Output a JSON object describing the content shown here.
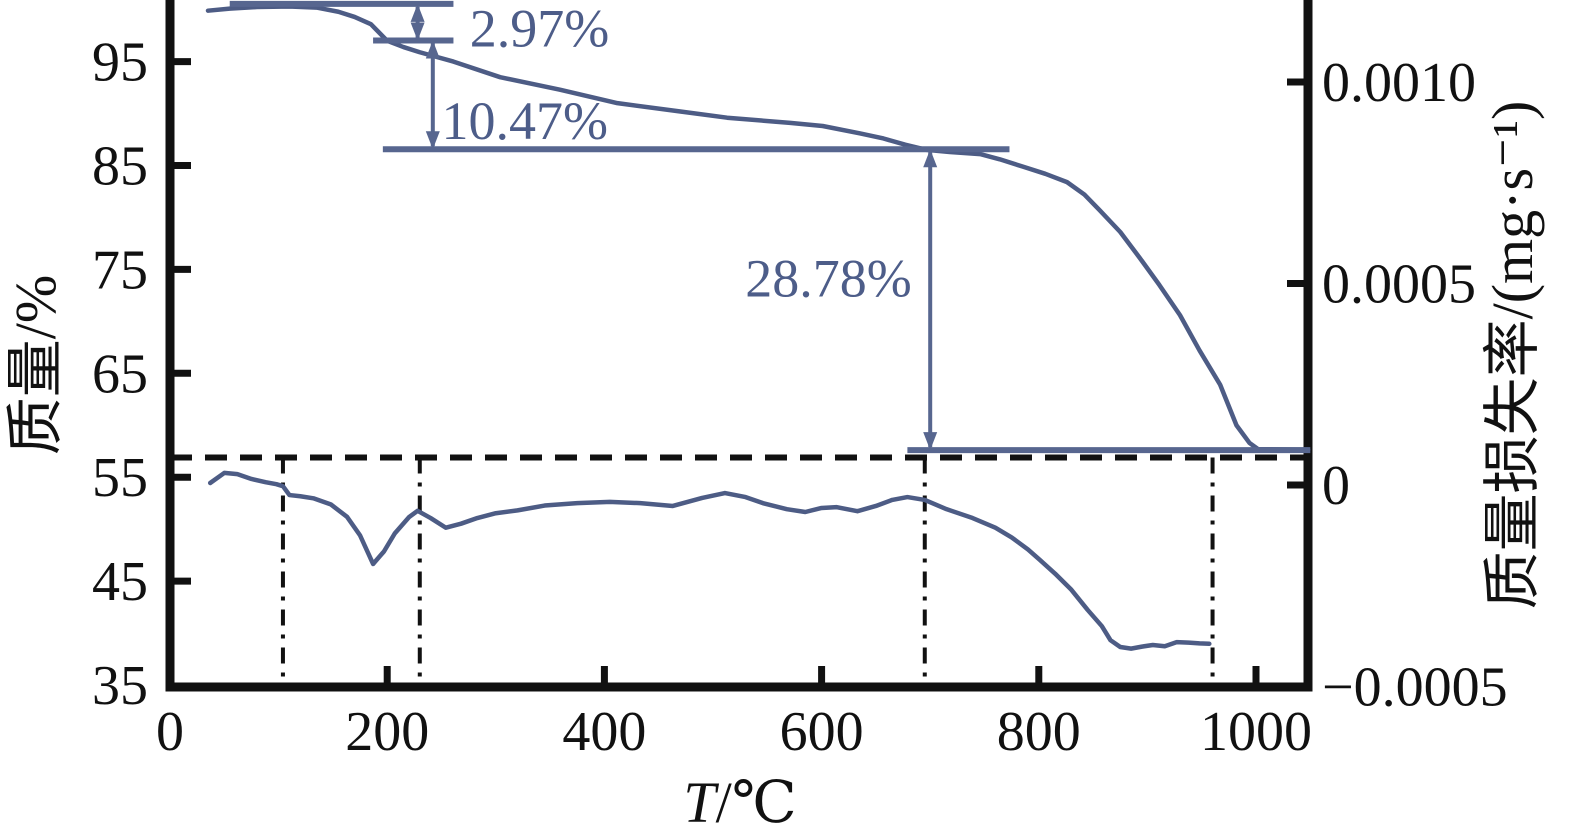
{
  "chart_data": {
    "type": "line",
    "title": "",
    "grid": false,
    "legend": "none",
    "x_axis": {
      "label_italic": "T",
      "label_rest": "/℃",
      "min": 0,
      "max": 1048,
      "ticks": [
        0,
        200,
        400,
        600,
        800,
        1000
      ],
      "tick_labels": [
        "0",
        "200",
        "400",
        "600",
        "800",
        "1000"
      ]
    },
    "y_left": {
      "label": "质量/%",
      "min": 35,
      "max": 101,
      "ticks": [
        95,
        85,
        75,
        65,
        55,
        45,
        35
      ],
      "tick_labels": [
        "95",
        "85",
        "75",
        "65",
        "55",
        "45",
        "35"
      ]
    },
    "y_right": {
      "label": "质量损失率/(mg·s⁻¹)",
      "min": -0.0005,
      "max": 0.0012,
      "ticks": [
        {
          "v": 0.001,
          "text": "0.0010"
        },
        {
          "v": 0.0005,
          "text": "0.0005"
        },
        {
          "v": 0,
          "text": "0"
        },
        {
          "v": -0.0005,
          "text": "−0.0005"
        }
      ]
    },
    "series": [
      {
        "name": "TG mass curve",
        "axis": "left",
        "points": [
          [
            35,
            99.9
          ],
          [
            55,
            100.1
          ],
          [
            80,
            100.25
          ],
          [
            110,
            100.3
          ],
          [
            135,
            100.2
          ],
          [
            155,
            99.8
          ],
          [
            170,
            99.3
          ],
          [
            185,
            98.6
          ],
          [
            200,
            97.0
          ],
          [
            215,
            96.4
          ],
          [
            230,
            95.9
          ],
          [
            261,
            95.0
          ],
          [
            304,
            93.5
          ],
          [
            359,
            92.3
          ],
          [
            412,
            91.0
          ],
          [
            470,
            90.2
          ],
          [
            513,
            89.6
          ],
          [
            571,
            89.1
          ],
          [
            601,
            88.8
          ],
          [
            635,
            88.1
          ],
          [
            657,
            87.6
          ],
          [
            677,
            87.0
          ],
          [
            697,
            86.5
          ],
          [
            718,
            86.3
          ],
          [
            746,
            86.1
          ],
          [
            764,
            85.6
          ],
          [
            785,
            84.9
          ],
          [
            806,
            84.2
          ],
          [
            826,
            83.4
          ],
          [
            842,
            82.2
          ],
          [
            856,
            80.7
          ],
          [
            875,
            78.6
          ],
          [
            893,
            76.1
          ],
          [
            911,
            73.5
          ],
          [
            930,
            70.6
          ],
          [
            948,
            67.2
          ],
          [
            967,
            63.9
          ],
          [
            982,
            60.0
          ],
          [
            994,
            58.3
          ],
          [
            1002,
            57.7
          ],
          [
            1048,
            57.65
          ]
        ]
      },
      {
        "name": "DTG mass-loss-rate curve",
        "axis": "right",
        "points": [
          [
            37,
            5e-06
          ],
          [
            50,
            3e-05
          ],
          [
            62,
            2.7e-05
          ],
          [
            75,
            1.5e-05
          ],
          [
            88,
            7e-06
          ],
          [
            98,
            2e-06
          ],
          [
            104,
            -3e-06
          ],
          [
            110,
            -2.5e-05
          ],
          [
            120,
            -2.8e-05
          ],
          [
            132,
            -3.3e-05
          ],
          [
            148,
            -4.8e-05
          ],
          [
            163,
            -7.9e-05
          ],
          [
            175,
            -0.000125
          ],
          [
            187,
            -0.000196
          ],
          [
            197,
            -0.000165
          ],
          [
            207,
            -0.00012
          ],
          [
            220,
            -8e-05
          ],
          [
            228,
            -6.4e-05
          ],
          [
            240,
            -8.2e-05
          ],
          [
            254,
            -0.000106
          ],
          [
            268,
            -9.6e-05
          ],
          [
            283,
            -8.2e-05
          ],
          [
            300,
            -7e-05
          ],
          [
            320,
            -6.3e-05
          ],
          [
            345,
            -5.1e-05
          ],
          [
            375,
            -4.5e-05
          ],
          [
            405,
            -4.2e-05
          ],
          [
            433,
            -4.5e-05
          ],
          [
            463,
            -5.2e-05
          ],
          [
            490,
            -3.2e-05
          ],
          [
            511,
            -2e-05
          ],
          [
            530,
            -3e-05
          ],
          [
            546,
            -4.5e-05
          ],
          [
            568,
            -6e-05
          ],
          [
            585,
            -6.7e-05
          ],
          [
            600,
            -5.7e-05
          ],
          [
            614,
            -5.5e-05
          ],
          [
            633,
            -6.5e-05
          ],
          [
            650,
            -5.2e-05
          ],
          [
            665,
            -3.7e-05
          ],
          [
            679,
            -3e-05
          ],
          [
            695,
            -3.7e-05
          ],
          [
            715,
            -6e-05
          ],
          [
            739,
            -8.2e-05
          ],
          [
            760,
            -0.000106
          ],
          [
            775,
            -0.00013
          ],
          [
            790,
            -0.00016
          ],
          [
            801,
            -0.000186
          ],
          [
            815,
            -0.00022
          ],
          [
            830,
            -0.00026
          ],
          [
            845,
            -0.00031
          ],
          [
            858,
            -0.00035
          ],
          [
            866,
            -0.000385
          ],
          [
            875,
            -0.000402
          ],
          [
            885,
            -0.000406
          ],
          [
            895,
            -0.000401
          ],
          [
            905,
            -0.000397
          ],
          [
            916,
            -0.0004
          ],
          [
            927,
            -0.00039
          ],
          [
            938,
            -0.000391
          ],
          [
            948,
            -0.000393
          ],
          [
            957,
            -0.000394
          ]
        ]
      }
    ],
    "reference_lines": {
      "dashed_horizontal": {
        "mass": 56.9,
        "t_start": 0,
        "t_end": 1048
      },
      "dashdot_verticals": [
        104,
        230,
        695,
        960
      ]
    },
    "annotations": {
      "levels": [
        {
          "mass": 100.55,
          "t_start": 55,
          "t_end": 261
        },
        {
          "mass": 97.03,
          "t_start": 187,
          "t_end": 261
        },
        {
          "mass": 86.56,
          "t_start": 196,
          "t_end": 773
        },
        {
          "mass": 57.6,
          "t_start": 679,
          "t_end": 1050
        }
      ],
      "arrows": [
        {
          "t": 228,
          "mass_from": 100.55,
          "mass_to": 97.03
        },
        {
          "t": 242,
          "mass_from": 97.03,
          "mass_to": 86.56
        },
        {
          "t": 700,
          "mass_from": 86.56,
          "mass_to": 57.6
        }
      ],
      "labels": [
        {
          "text": "2.97%",
          "t": 276,
          "mass": 98.3,
          "anchor": "start"
        },
        {
          "text": "10.47%",
          "t": 250,
          "mass": 89.4,
          "anchor": "start"
        },
        {
          "text": "28.78%",
          "t": 683,
          "mass": 74.2,
          "anchor": "end"
        }
      ]
    },
    "colors": {
      "curve": "#4d5c85",
      "annotation_line": "#57668f",
      "annotation_text": "#4d5d89",
      "axis": "#111111"
    }
  }
}
